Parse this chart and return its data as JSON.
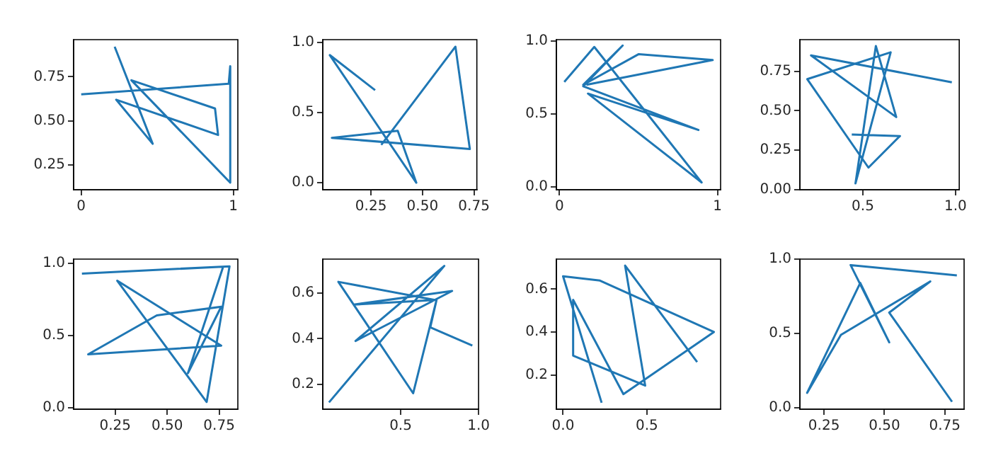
{
  "chart_data": [
    {
      "type": "line",
      "marker": "none",
      "grid": false,
      "color": "#1f77b4",
      "x": [
        0.22,
        0.47,
        0.23,
        0.9,
        0.88,
        0.33,
        0.98,
        0.98,
        0.97,
        0.0
      ],
      "values": [
        0.92,
        0.37,
        0.62,
        0.42,
        0.57,
        0.73,
        0.15,
        0.81,
        0.71,
        0.65
      ],
      "xlim": [
        -0.05,
        1.03
      ],
      "ylim": [
        0.11,
        0.96
      ],
      "xticks": [
        0,
        1
      ],
      "yticks": [
        {
          "value": 0.25,
          "label": "0.25"
        },
        {
          "value": 0.5,
          "label": "0.50"
        },
        0.75
      ]
    },
    {
      "type": "line",
      "marker": "none",
      "grid": false,
      "color": "#1f77b4",
      "x": [
        0.27,
        0.05,
        0.47,
        0.38,
        0.06,
        0.73,
        0.66,
        0.3
      ],
      "values": [
        0.66,
        0.91,
        0.0,
        0.37,
        0.32,
        0.24,
        0.97,
        0.27
      ],
      "xlim": [
        0.016,
        0.764
      ],
      "ylim": [
        -0.05,
        1.02
      ],
      "xticks": [
        0.25,
        {
          "value": 0.5,
          "label": "0.50"
        },
        0.75
      ],
      "yticks": [
        {
          "value": 0,
          "label": "0.0"
        },
        0.5,
        {
          "value": 1,
          "label": "1.0"
        }
      ]
    },
    {
      "type": "line",
      "marker": "none",
      "grid": false,
      "color": "#1f77b4",
      "x": [
        0.03,
        0.22,
        0.9,
        0.18,
        0.88,
        0.15,
        0.4,
        0.15,
        0.5,
        0.97,
        0.17
      ],
      "values": [
        0.72,
        0.96,
        0.03,
        0.64,
        0.39,
        0.69,
        0.97,
        0.7,
        0.91,
        0.87,
        0.7
      ],
      "xlim": [
        -0.02,
        1.02
      ],
      "ylim": [
        -0.02,
        1.01
      ],
      "xticks": [
        0,
        1
      ],
      "yticks": [
        {
          "value": 0,
          "label": "0.0"
        },
        0.5,
        {
          "value": 1,
          "label": "1.0"
        }
      ]
    },
    {
      "type": "line",
      "marker": "none",
      "grid": false,
      "color": "#1f77b4",
      "x": [
        0.98,
        0.22,
        0.68,
        0.57,
        0.46,
        0.65,
        0.2,
        0.53,
        0.7,
        0.44
      ],
      "values": [
        0.68,
        0.85,
        0.46,
        0.91,
        0.04,
        0.87,
        0.7,
        0.14,
        0.34,
        0.35
      ],
      "xlim": [
        0.16,
        1.02
      ],
      "ylim": [
        0.0,
        0.95
      ],
      "xticks": [
        0.5,
        {
          "value": 1,
          "label": "1.0"
        }
      ],
      "yticks": [
        {
          "value": 0,
          "label": "0.00"
        },
        0.25,
        {
          "value": 0.5,
          "label": "0.50"
        },
        0.75
      ]
    },
    {
      "type": "line",
      "marker": "none",
      "grid": false,
      "color": "#1f77b4",
      "x": [
        0.09,
        0.8,
        0.69,
        0.26,
        0.76,
        0.12,
        0.45,
        0.76,
        0.6,
        0.77
      ],
      "values": [
        0.93,
        0.98,
        0.04,
        0.88,
        0.43,
        0.37,
        0.64,
        0.7,
        0.24,
        0.98
      ],
      "xlim": [
        0.05,
        0.84
      ],
      "ylim": [
        -0.01,
        1.03
      ],
      "xticks": [
        0.25,
        {
          "value": 0.5,
          "label": "0.50"
        },
        0.75
      ],
      "yticks": [
        {
          "value": 0,
          "label": "0.0"
        },
        0.5,
        {
          "value": 1,
          "label": "1.0"
        }
      ]
    },
    {
      "type": "line",
      "marker": "none",
      "grid": false,
      "color": "#1f77b4",
      "x": [
        0.04,
        0.78,
        0.21,
        0.83,
        0.2,
        0.72,
        0.1,
        0.58,
        0.73,
        0.69,
        0.96
      ],
      "values": [
        0.12,
        0.72,
        0.39,
        0.61,
        0.55,
        0.57,
        0.65,
        0.16,
        0.57,
        0.45,
        0.37
      ],
      "xlim": [
        0.0,
        1.0
      ],
      "ylim": [
        0.09,
        0.75
      ],
      "xticks": [
        0.5,
        {
          "value": 1,
          "label": "1.0"
        }
      ],
      "yticks": [
        0.2,
        0.4,
        0.6
      ]
    },
    {
      "type": "line",
      "marker": "none",
      "grid": false,
      "color": "#1f77b4",
      "x": [
        0.8,
        0.37,
        0.49,
        0.06,
        0.06,
        0.36,
        0.9,
        0.22,
        0.0,
        0.23
      ],
      "values": [
        0.26,
        0.71,
        0.15,
        0.29,
        0.55,
        0.11,
        0.4,
        0.64,
        0.66,
        0.07
      ],
      "xlim": [
        -0.04,
        0.94
      ],
      "ylim": [
        0.04,
        0.74
      ],
      "xticks": [
        {
          "value": 0,
          "label": "0.0"
        },
        0.5
      ],
      "yticks": [
        0.2,
        0.4,
        0.6
      ]
    },
    {
      "type": "line",
      "marker": "none",
      "grid": false,
      "color": "#1f77b4",
      "x": [
        0.78,
        0.52,
        0.69,
        0.32,
        0.18,
        0.4,
        0.52,
        0.36,
        0.8
      ],
      "values": [
        0.04,
        0.64,
        0.85,
        0.49,
        0.1,
        0.84,
        0.44,
        0.96,
        0.89
      ],
      "xlim": [
        0.15,
        0.83
      ],
      "ylim": [
        -0.01,
        1.0
      ],
      "xticks": [
        0.25,
        {
          "value": 0.5,
          "label": "0.50"
        },
        0.75
      ],
      "yticks": [
        {
          "value": 0,
          "label": "0.0"
        },
        0.5,
        {
          "value": 1,
          "label": "1.0"
        }
      ]
    }
  ]
}
